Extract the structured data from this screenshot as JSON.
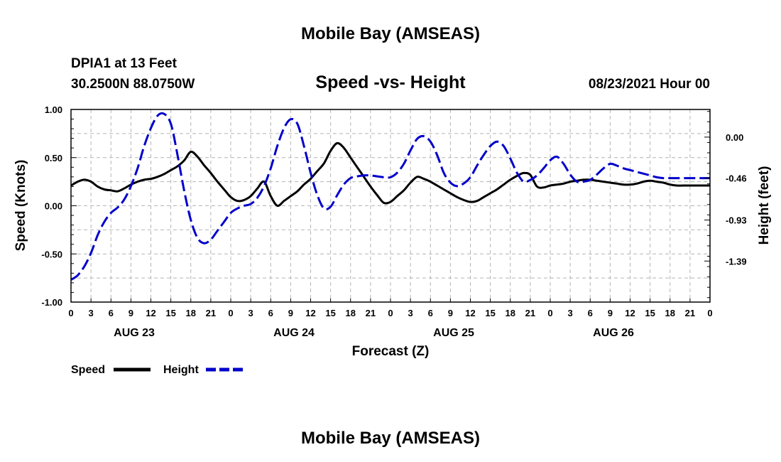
{
  "header": {
    "title": "Mobile Bay (AMSEAS)",
    "station": "DPIA1 at 13 Feet",
    "location": "30.2500N  88.0750W",
    "datetime": "08/23/2021 Hour 00"
  },
  "footer": {
    "title": "Mobile Bay (AMSEAS)"
  },
  "colors": {
    "speed": "#000000",
    "height": "#0000cc",
    "grid": "#b4b4b4"
  },
  "chart_data": {
    "type": "line",
    "title": "Speed -vs- Height",
    "xlabel": "Forecast (Z)",
    "ylabel": "Speed (Knots)",
    "y2label": "Height (feet)",
    "xlim": [
      0,
      96
    ],
    "ylim": [
      -1.0,
      1.0
    ],
    "y2lim": [
      -1.85,
      0.31
    ],
    "yticks": [
      "1.00",
      "0.50",
      "0.00",
      "-0.50",
      "-1.00"
    ],
    "y2ticks": [
      "0.00",
      "-0.46",
      "-0.93",
      "-1.39"
    ],
    "xtick_labels": [
      "0",
      "3",
      "6",
      "9",
      "12",
      "15",
      "18",
      "21",
      "0",
      "3",
      "6",
      "9",
      "12",
      "15",
      "18",
      "21",
      "0",
      "3",
      "6",
      "9",
      "12",
      "15",
      "18",
      "21",
      "0",
      "3",
      "6",
      "9",
      "12",
      "15",
      "18",
      "21",
      "0"
    ],
    "date_labels": [
      "AUG 23",
      "AUG 24",
      "AUG 25",
      "AUG 26"
    ],
    "grid": true,
    "legend_position": "bottom-left",
    "series": [
      {
        "name": "Speed",
        "style": "solid",
        "axis": "left",
        "x": [
          0,
          1,
          2,
          3,
          4,
          5,
          6,
          7,
          8,
          9,
          10,
          11,
          12,
          13,
          14,
          15,
          16,
          17,
          18,
          19,
          20,
          21,
          22,
          23,
          24,
          25,
          26,
          27,
          28,
          29,
          30,
          31,
          32,
          33,
          34,
          35,
          36,
          37,
          38,
          39,
          40,
          41,
          42,
          43,
          44,
          45,
          46,
          47,
          48,
          49,
          50,
          51,
          52,
          53,
          54,
          55,
          56,
          57,
          58,
          59,
          60,
          61,
          62,
          63,
          64,
          65,
          66,
          67,
          68,
          69,
          70,
          71,
          72,
          73,
          74,
          75,
          76,
          77,
          78,
          79,
          80,
          81,
          82,
          83,
          84,
          85,
          86,
          87,
          88,
          89,
          90,
          91,
          92,
          93,
          94,
          95,
          96
        ],
        "y": [
          0.21,
          0.25,
          0.27,
          0.25,
          0.2,
          0.17,
          0.16,
          0.15,
          0.18,
          0.22,
          0.25,
          0.27,
          0.28,
          0.3,
          0.33,
          0.37,
          0.41,
          0.47,
          0.56,
          0.51,
          0.42,
          0.34,
          0.25,
          0.17,
          0.09,
          0.05,
          0.06,
          0.1,
          0.18,
          0.25,
          0.1,
          0.0,
          0.05,
          0.1,
          0.15,
          0.22,
          0.28,
          0.36,
          0.44,
          0.57,
          0.65,
          0.6,
          0.5,
          0.4,
          0.3,
          0.2,
          0.11,
          0.03,
          0.04,
          0.1,
          0.16,
          0.24,
          0.3,
          0.28,
          0.25,
          0.21,
          0.17,
          0.13,
          0.09,
          0.06,
          0.04,
          0.05,
          0.09,
          0.13,
          0.17,
          0.22,
          0.27,
          0.31,
          0.34,
          0.32,
          0.2,
          0.19,
          0.21,
          0.22,
          0.23,
          0.25,
          0.26,
          0.27,
          0.27,
          0.26,
          0.25,
          0.24,
          0.23,
          0.22,
          0.22,
          0.23,
          0.25,
          0.26,
          0.25,
          0.24,
          0.22,
          0.21,
          0.21,
          0.21,
          0.21,
          0.21,
          0.21
        ]
      },
      {
        "name": "Height",
        "style": "dashed",
        "axis": "right",
        "x": [
          0,
          1,
          2,
          3,
          4,
          5,
          6,
          7,
          8,
          9,
          10,
          11,
          12,
          13,
          14,
          15,
          16,
          17,
          18,
          19,
          20,
          21,
          22,
          23,
          24,
          25,
          26,
          27,
          28,
          29,
          30,
          31,
          32,
          33,
          34,
          35,
          36,
          37,
          38,
          39,
          40,
          41,
          42,
          43,
          44,
          45,
          46,
          47,
          48,
          49,
          50,
          51,
          52,
          53,
          54,
          55,
          56,
          57,
          58,
          59,
          60,
          61,
          62,
          63,
          64,
          65,
          66,
          67,
          68,
          69,
          70,
          71,
          72,
          73,
          74,
          75,
          76,
          77,
          78,
          79,
          80,
          81,
          82,
          83,
          84,
          85,
          86,
          87,
          88,
          89,
          90,
          91,
          92,
          93,
          94,
          95,
          96
        ],
        "y": [
          -1.6,
          -1.55,
          -1.45,
          -1.3,
          -1.1,
          -0.95,
          -0.85,
          -0.79,
          -0.7,
          -0.55,
          -0.35,
          -0.1,
          0.1,
          0.24,
          0.26,
          0.15,
          -0.2,
          -0.6,
          -0.93,
          -1.13,
          -1.19,
          -1.15,
          -1.05,
          -0.95,
          -0.85,
          -0.8,
          -0.77,
          -0.75,
          -0.68,
          -0.55,
          -0.35,
          -0.1,
          0.1,
          0.2,
          0.15,
          -0.1,
          -0.4,
          -0.65,
          -0.8,
          -0.78,
          -0.65,
          -0.53,
          -0.46,
          -0.44,
          -0.43,
          -0.43,
          -0.44,
          -0.45,
          -0.45,
          -0.4,
          -0.3,
          -0.15,
          -0.02,
          0.01,
          -0.05,
          -0.2,
          -0.4,
          -0.51,
          -0.55,
          -0.52,
          -0.45,
          -0.32,
          -0.2,
          -0.1,
          -0.05,
          -0.1,
          -0.24,
          -0.4,
          -0.5,
          -0.48,
          -0.43,
          -0.35,
          -0.26,
          -0.22,
          -0.3,
          -0.42,
          -0.5,
          -0.5,
          -0.48,
          -0.42,
          -0.35,
          -0.3,
          -0.32,
          -0.35,
          -0.37,
          -0.39,
          -0.41,
          -0.43,
          -0.45,
          -0.46,
          -0.46,
          -0.46,
          -0.46,
          -0.46,
          -0.46,
          -0.46,
          -0.46
        ]
      }
    ]
  }
}
